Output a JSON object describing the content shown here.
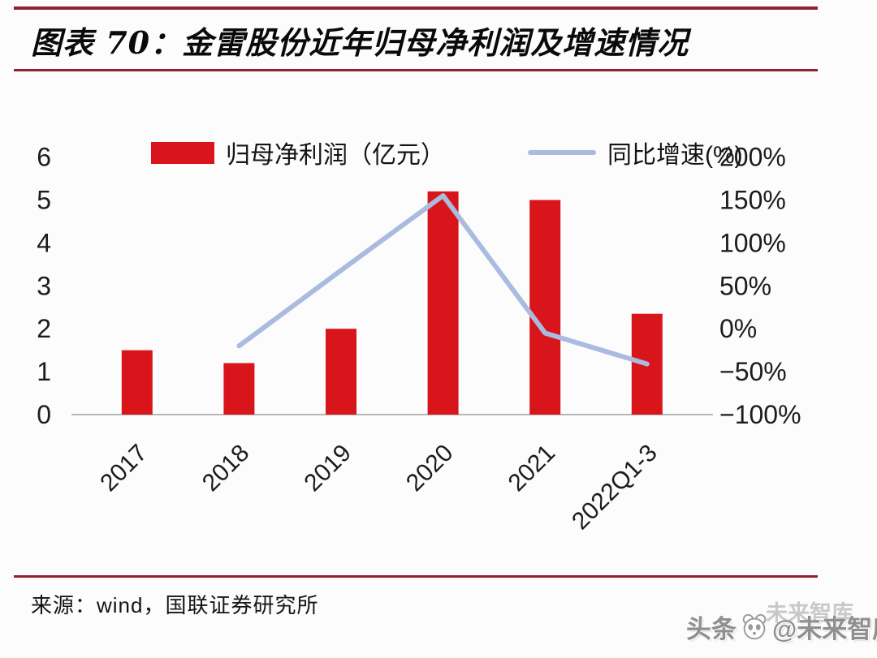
{
  "page": {
    "title": "图表 70：金雷股份近年归母净利润及增速情况",
    "source": "来源：wind，国联证券研究所",
    "watermark": {
      "prefix": "头条",
      "suffix": "@未来智库",
      "ghost": "未来智库",
      "icon": "panda-logo-icon"
    }
  },
  "colors": {
    "bar_red": "#d9151c",
    "line_blue": "#a9bcdf",
    "rule_red": "#8e2136",
    "axis_gray": "#b9b9b9",
    "text_dark": "#1c1c1c"
  },
  "chart_data": {
    "type": "bar",
    "subtype": "combo-bar-line-dual-axis",
    "title": "金雷股份近年归母净利润及增速情况",
    "categories": [
      "2017",
      "2018",
      "2019",
      "2020",
      "2021",
      "2022Q1-3"
    ],
    "series": [
      {
        "name": "归母净利润（亿元）",
        "type": "bar",
        "axis": "left",
        "color": "#d9151c",
        "values": [
          1.5,
          1.2,
          2.0,
          5.2,
          5.0,
          2.35
        ]
      },
      {
        "name": "同比增速(%)",
        "type": "line",
        "axis": "right",
        "color": "#a9bcdf",
        "values": [
          null,
          -20,
          68,
          155,
          -5,
          -41
        ]
      }
    ],
    "left_axis": {
      "values": [
        6,
        5,
        4,
        3,
        2,
        1,
        0
      ],
      "ticks": [
        "6",
        "5",
        "4",
        "3",
        "2",
        "1",
        "0"
      ],
      "range": [
        0,
        6
      ]
    },
    "right_axis": {
      "values": [
        200,
        150,
        100,
        50,
        0,
        -50,
        -100
      ],
      "ticks": [
        "200%",
        "150%",
        "100%",
        "50%",
        "0%",
        "−50%",
        "−100%"
      ],
      "range": [
        -100,
        200
      ]
    },
    "legend": [
      {
        "label": "归母净利润（亿元）",
        "marker": "bar"
      },
      {
        "label": "同比增速(%)",
        "marker": "line"
      }
    ],
    "grid": false,
    "legend_position": "top",
    "x_label_rotation": -45
  }
}
